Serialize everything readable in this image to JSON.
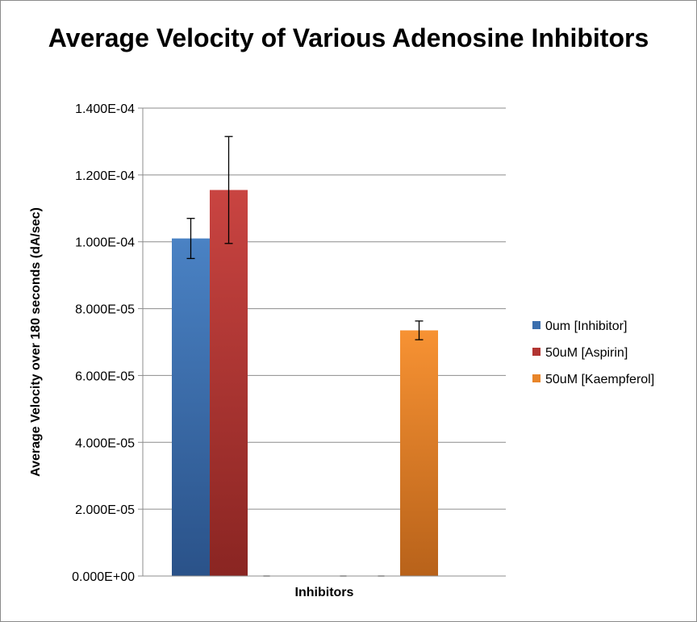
{
  "chart_data": {
    "type": "bar",
    "title": "Average Velocity of Various Adenosine Inhibitors",
    "xlabel": "Inhibitors",
    "ylabel": "Average Velocity over 180 seconds (dA/sec)",
    "ylim": [
      0,
      0.00014
    ],
    "yticks": [
      0,
      2e-05,
      4e-05,
      6e-05,
      8e-05,
      0.0001,
      0.00012,
      0.00014
    ],
    "ytick_labels": [
      "0.000E+00",
      "2.000E-05",
      "4.000E-05",
      "6.000E-05",
      "8.000E-05",
      "1.000E-04",
      "1.200E-04",
      "1.400E-04"
    ],
    "grid": true,
    "legend_position": "right",
    "series": [
      {
        "name": "0um [Inhibitor]",
        "color": "#3b6fae",
        "values": [
          0.000101,
          0
        ],
        "error": [
          6e-06,
          0
        ]
      },
      {
        "name": "50uM [Aspirin]",
        "color": "#b23532",
        "values": [
          0.0001155,
          0
        ],
        "error": [
          1.6e-05,
          0
        ]
      },
      {
        "name": "50uM [Kaempferol]",
        "color": "#e8852a",
        "values": [
          0,
          7.35e-05
        ],
        "error": [
          0,
          2.8e-06
        ]
      }
    ]
  }
}
